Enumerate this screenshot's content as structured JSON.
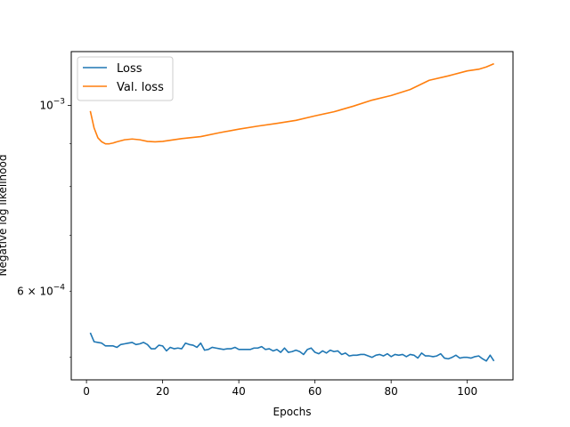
{
  "chart_data": {
    "type": "line",
    "xlabel": "Epochs",
    "ylabel": "Negative log likelihood",
    "yscale": "log",
    "xlim": [
      -4,
      112
    ],
    "ylim": [
      0.00047,
      0.00116
    ],
    "grid": false,
    "legend_position": "top-left",
    "x_ticks": [
      0,
      20,
      40,
      60,
      80,
      100
    ],
    "x_tick_labels": [
      "0",
      "20",
      "40",
      "60",
      "80",
      "100"
    ],
    "y_major_ticks": [
      0.001
    ],
    "y_major_labels": [
      "10",
      "−3"
    ],
    "y_minor_labeled_ticks": [
      0.0006
    ],
    "y_minor_labels": [
      "6 × 10",
      "−4"
    ],
    "y_minor_ticks": [
      0.0005,
      0.0006,
      0.0007,
      0.0008,
      0.0009
    ],
    "series": [
      {
        "name": "Loss",
        "color": "#1f77b4",
        "x": [
          1,
          2,
          3,
          4,
          5,
          6,
          7,
          8,
          9,
          10,
          11,
          12,
          13,
          14,
          15,
          16,
          17,
          18,
          19,
          20,
          21,
          22,
          23,
          24,
          25,
          26,
          27,
          28,
          29,
          30,
          31,
          32,
          33,
          34,
          35,
          36,
          37,
          38,
          39,
          40,
          41,
          42,
          43,
          44,
          45,
          46,
          47,
          48,
          49,
          50,
          51,
          52,
          53,
          54,
          55,
          56,
          57,
          58,
          59,
          60,
          61,
          62,
          63,
          64,
          65,
          66,
          67,
          68,
          69,
          70,
          71,
          72,
          73,
          74,
          75,
          76,
          77,
          78,
          79,
          80,
          81,
          82,
          83,
          84,
          85,
          86,
          87,
          88,
          89,
          90,
          91,
          92,
          93,
          94,
          95,
          96,
          97,
          98,
          99,
          100,
          101,
          102,
          103,
          104,
          105,
          106,
          107
        ],
        "values": [
          0.000535,
          0.000522,
          0.000521,
          0.00052,
          0.000516,
          0.000516,
          0.000516,
          0.000514,
          0.000518,
          0.000519,
          0.00052,
          0.000521,
          0.000518,
          0.000519,
          0.000521,
          0.000518,
          0.000512,
          0.000512,
          0.000517,
          0.000516,
          0.000509,
          0.000514,
          0.000512,
          0.000513,
          0.000512,
          0.00052,
          0.000518,
          0.000517,
          0.000514,
          0.00052,
          0.00051,
          0.000511,
          0.000514,
          0.000513,
          0.000512,
          0.000511,
          0.000512,
          0.000512,
          0.000514,
          0.000511,
          0.000511,
          0.000511,
          0.000511,
          0.000513,
          0.000513,
          0.000515,
          0.000511,
          0.000512,
          0.000509,
          0.000511,
          0.000507,
          0.000513,
          0.000507,
          0.000508,
          0.00051,
          0.000508,
          0.000504,
          0.000511,
          0.000513,
          0.000507,
          0.000505,
          0.000509,
          0.000506,
          0.00051,
          0.000508,
          0.000509,
          0.000504,
          0.000506,
          0.000502,
          0.000503,
          0.000503,
          0.000504,
          0.000504,
          0.000502,
          0.0005,
          0.000503,
          0.000504,
          0.000502,
          0.000505,
          0.000501,
          0.000504,
          0.000503,
          0.000504,
          0.000501,
          0.000504,
          0.000503,
          0.000499,
          0.000506,
          0.000502,
          0.000502,
          0.000501,
          0.000502,
          0.000505,
          0.000499,
          0.000498,
          0.0005,
          0.000503,
          0.000499,
          0.0005,
          0.0005,
          0.000499,
          0.000501,
          0.000502,
          0.000498,
          0.000495,
          0.000503,
          0.000495
        ]
      },
      {
        "name": "Val. loss",
        "color": "#ff7f0e",
        "x": [
          1,
          2,
          3,
          4,
          5,
          6,
          7,
          8,
          10,
          12,
          14,
          16,
          18,
          20,
          25,
          30,
          35,
          40,
          45,
          50,
          55,
          60,
          65,
          70,
          75,
          80,
          85,
          90,
          95,
          100,
          103,
          105,
          107
        ],
        "values": [
          0.000985,
          0.00094,
          0.000915,
          0.000905,
          0.0009,
          0.0009,
          0.000902,
          0.000905,
          0.00091,
          0.000912,
          0.00091,
          0.000906,
          0.000905,
          0.000906,
          0.000913,
          0.000918,
          0.000928,
          0.000937,
          0.000945,
          0.000952,
          0.00096,
          0.000972,
          0.000983,
          0.000998,
          0.001015,
          0.001028,
          0.001045,
          0.001072,
          0.001085,
          0.0011,
          0.001105,
          0.001112,
          0.001122
        ]
      }
    ]
  }
}
